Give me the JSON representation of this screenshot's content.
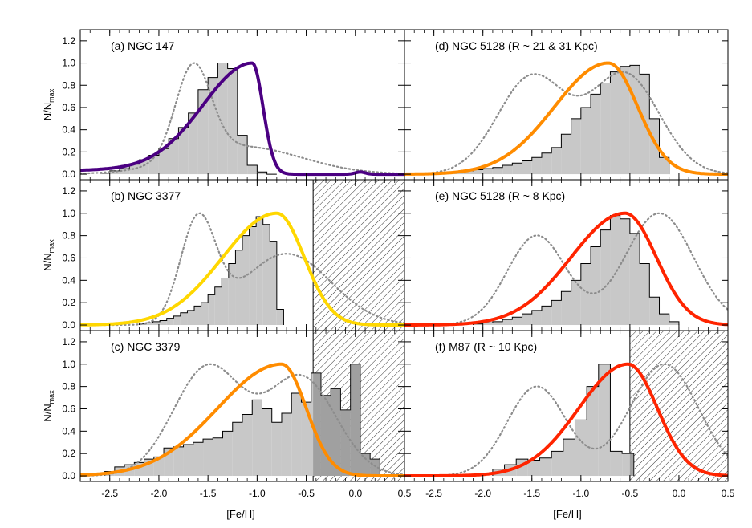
{
  "figure": {
    "xlabel": "[Fe/H]",
    "ylabel_main": "N/N",
    "ylabel_sub": "max",
    "x_ticks": [
      "-2.5",
      "-2.0",
      "-1.5",
      "-1.0",
      "-0.5",
      "0.0",
      "0.5"
    ],
    "y_ticks": [
      "0.0",
      "0.2",
      "0.4",
      "0.6",
      "0.8",
      "1.0",
      "1.2"
    ]
  },
  "colors": {
    "hist_fill": "#c8c8c8",
    "dotted": "#8c8c8c",
    "purple": "#4b0082",
    "yellow": "#ffd700",
    "orange": "#ff8c00",
    "red": "#ff2400"
  },
  "chart_data": [
    {
      "type": "histogram+line",
      "title": "(a) NGC 147",
      "xlim": [
        -2.8,
        0.5
      ],
      "ylim": [
        -0.05,
        1.3
      ],
      "curve_color": "purple",
      "hatch_from": null,
      "hist": {
        "edges_start": -2.6,
        "bin_width": 0.1,
        "values": [
          0.01,
          0.03,
          0.05,
          0.09,
          0.13,
          0.17,
          0.23,
          0.32,
          0.42,
          0.55,
          0.76,
          0.87,
          1.0,
          0.95,
          0.35,
          0.08,
          0.02,
          0.0
        ]
      },
      "curve": {
        "mu": -1.05,
        "sigma_left": 0.5,
        "sigma_right": 0.11,
        "tail_level": 0.06,
        "bump": {
          "x": 0.05,
          "h": 0.02
        }
      },
      "dotted": {
        "peaks": [
          {
            "x": -1.65,
            "h": 1.0,
            "s": 0.18
          },
          {
            "x": -1.15,
            "h": 0.3,
            "s": 0.6
          }
        ],
        "tail_to": 0.5
      }
    },
    {
      "type": "histogram+line",
      "title": "(b) NGC 3377",
      "xlim": [
        -2.8,
        0.5
      ],
      "ylim": [
        -0.05,
        1.3
      ],
      "curve_color": "yellow",
      "hatch_from": -0.43,
      "hist": {
        "edges_start": -2.2,
        "bin_width": 0.07,
        "values": [
          0.01,
          0.02,
          0.03,
          0.04,
          0.06,
          0.08,
          0.11,
          0.13,
          0.17,
          0.2,
          0.27,
          0.34,
          0.42,
          0.55,
          0.67,
          0.8,
          0.88,
          0.97,
          0.9,
          0.75,
          0.14
        ]
      },
      "curve": {
        "mu": -0.8,
        "sigma_left": 0.55,
        "sigma_right": 0.28,
        "tail_level": 0.0,
        "bump": null
      },
      "dotted": {
        "peaks": [
          {
            "x": -1.6,
            "h": 1.0,
            "s": 0.18
          },
          {
            "x": -0.7,
            "h": 0.7,
            "s": 0.45
          }
        ],
        "tail_to": 0.5
      }
    },
    {
      "type": "histogram+line",
      "title": "(c) NGC 3379",
      "xlim": [
        -2.8,
        0.5
      ],
      "ylim": [
        -0.05,
        1.3
      ],
      "curve_color": "orange",
      "hatch_from": -0.43,
      "hist": {
        "edges_start": -2.55,
        "bin_width": 0.1,
        "values": [
          0.04,
          0.08,
          0.1,
          0.12,
          0.15,
          0.17,
          0.25,
          0.26,
          0.28,
          0.3,
          0.33,
          0.34,
          0.4,
          0.48,
          0.55,
          0.68,
          0.6,
          0.48,
          0.56,
          0.74,
          0.66,
          0.92,
          0.72,
          0.78,
          0.59,
          1.0,
          0.2,
          0.15
        ]
      },
      "curve": {
        "mu": -0.75,
        "sigma_left": 0.65,
        "sigma_right": 0.25,
        "tail_level": 0.0,
        "bump": null
      },
      "dotted": {
        "peaks": [
          {
            "x": -1.5,
            "h": 1.0,
            "s": 0.35
          },
          {
            "x": -0.55,
            "h": 0.9,
            "s": 0.35
          }
        ],
        "tail_to": 0.5
      }
    },
    {
      "type": "histogram+line",
      "title": "(d) NGC 5128 (R ~ 21 & 31 Kpc)",
      "xlim": [
        -2.8,
        0.5
      ],
      "ylim": [
        -0.05,
        1.3
      ],
      "curve_color": "orange",
      "hatch_from": null,
      "hist": {
        "edges_start": -2.4,
        "bin_width": 0.1,
        "values": [
          0.01,
          0.02,
          0.03,
          0.04,
          0.05,
          0.06,
          0.08,
          0.1,
          0.12,
          0.15,
          0.19,
          0.24,
          0.36,
          0.5,
          0.6,
          0.72,
          0.82,
          0.92,
          0.97,
          0.98,
          0.9,
          0.5,
          0.15
        ]
      },
      "curve": {
        "mu": -0.72,
        "sigma_left": 0.55,
        "sigma_right": 0.3,
        "tail_level": 0.0,
        "bump": null
      },
      "dotted": {
        "peaks": [
          {
            "x": -1.5,
            "h": 0.9,
            "s": 0.35
          },
          {
            "x": -0.55,
            "h": 0.92,
            "s": 0.35
          }
        ],
        "tail_to": 0.5
      }
    },
    {
      "type": "histogram+line",
      "title": "(e) NGC 5128 (R ~ 8 Kpc)",
      "xlim": [
        -2.8,
        0.5
      ],
      "ylim": [
        -0.05,
        1.3
      ],
      "curve_color": "red",
      "hatch_from": null,
      "hist": {
        "edges_start": -2.1,
        "bin_width": 0.1,
        "values": [
          0.01,
          0.02,
          0.03,
          0.05,
          0.07,
          0.1,
          0.13,
          0.17,
          0.22,
          0.3,
          0.4,
          0.55,
          0.7,
          0.85,
          0.98,
          0.95,
          0.82,
          0.55,
          0.25,
          0.1,
          0.03
        ]
      },
      "curve": {
        "mu": -0.55,
        "sigma_left": 0.55,
        "sigma_right": 0.32,
        "tail_level": 0.0,
        "bump": null
      },
      "dotted": {
        "peaks": [
          {
            "x": -1.45,
            "h": 0.8,
            "s": 0.3
          },
          {
            "x": -0.2,
            "h": 1.0,
            "s": 0.35
          }
        ],
        "tail_to": 0.5
      }
    },
    {
      "type": "histogram+line",
      "title": "(f) M87 (R ~ 10 Kpc)",
      "xlim": [
        -2.8,
        0.5
      ],
      "ylim": [
        -0.05,
        1.3
      ],
      "curve_color": "red",
      "hatch_from": -0.5,
      "hist": {
        "edges_start": -1.9,
        "bin_width": 0.12,
        "values": [
          0.06,
          0.1,
          0.15,
          0.14,
          0.16,
          0.22,
          0.33,
          0.5,
          0.8,
          1.0,
          0.22,
          0.2
        ]
      },
      "curve": {
        "mu": -0.52,
        "sigma_left": 0.5,
        "sigma_right": 0.3,
        "tail_level": 0.0,
        "bump": null
      },
      "dotted": {
        "peaks": [
          {
            "x": -1.45,
            "h": 0.8,
            "s": 0.3
          },
          {
            "x": -0.15,
            "h": 1.0,
            "s": 0.35
          }
        ],
        "tail_to": 0.5
      }
    }
  ]
}
